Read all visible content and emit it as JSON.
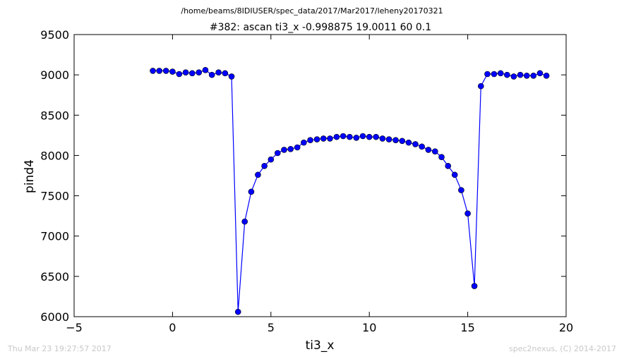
{
  "page": {
    "filepath": "/home/beams/8IDIUSER/spec_data/2017/Mar2017/leheny20170321",
    "timestamp": "Thu Mar 23 19:27:57 2017",
    "credit": "spec2nexus, (C) 2014-2017"
  },
  "colors": {
    "series": "#0000ff",
    "axes": "#000000",
    "footer": "#c8c8c8"
  },
  "chart_data": {
    "type": "scatter",
    "title": "#382: ascan  ti3_x -0.998875 19.0011  60 0.1",
    "xlabel": "ti3_x",
    "ylabel": "pind4",
    "xlim": [
      -5,
      20
    ],
    "ylim": [
      6000,
      9500
    ],
    "xticks": [
      -5,
      0,
      5,
      10,
      15,
      20
    ],
    "xtick_labels": [
      "−5",
      "0",
      "5",
      "10",
      "15",
      "20"
    ],
    "yticks": [
      6000,
      6500,
      7000,
      7500,
      8000,
      8500,
      9000,
      9500
    ],
    "ytick_labels": [
      "6000",
      "6500",
      "7000",
      "7500",
      "8000",
      "8500",
      "9000",
      "9500"
    ],
    "grid": false,
    "legend": "none",
    "series": [
      {
        "marker": "circle",
        "line": true,
        "x": [
          -1.0,
          -0.67,
          -0.33,
          0.0,
          0.34,
          0.67,
          1.0,
          1.34,
          1.67,
          2.0,
          2.34,
          2.67,
          3.0,
          3.33,
          3.67,
          4.0,
          4.34,
          4.67,
          5.0,
          5.34,
          5.67,
          6.0,
          6.34,
          6.67,
          7.0,
          7.34,
          7.67,
          8.0,
          8.34,
          8.67,
          9.0,
          9.34,
          9.67,
          10.0,
          10.34,
          10.67,
          11.0,
          11.34,
          11.67,
          12.0,
          12.34,
          12.67,
          13.0,
          13.34,
          13.67,
          14.0,
          14.34,
          14.67,
          15.0,
          15.34,
          15.67,
          16.0,
          16.34,
          16.67,
          17.0,
          17.34,
          17.67,
          18.0,
          18.34,
          18.67,
          19.0
        ],
        "y": [
          9050,
          9050,
          9050,
          9040,
          9010,
          9030,
          9020,
          9030,
          9060,
          9000,
          9030,
          9020,
          8980,
          6060,
          7180,
          7550,
          7760,
          7870,
          7950,
          8030,
          8070,
          8080,
          8100,
          8160,
          8190,
          8200,
          8210,
          8210,
          8230,
          8240,
          8230,
          8220,
          8240,
          8230,
          8230,
          8210,
          8200,
          8190,
          8180,
          8160,
          8140,
          8110,
          8070,
          8050,
          7980,
          7870,
          7760,
          7570,
          7280,
          6380,
          8860,
          9010,
          9010,
          9020,
          9000,
          8980,
          9000,
          8990,
          8990,
          9020,
          8990
        ]
      }
    ]
  }
}
